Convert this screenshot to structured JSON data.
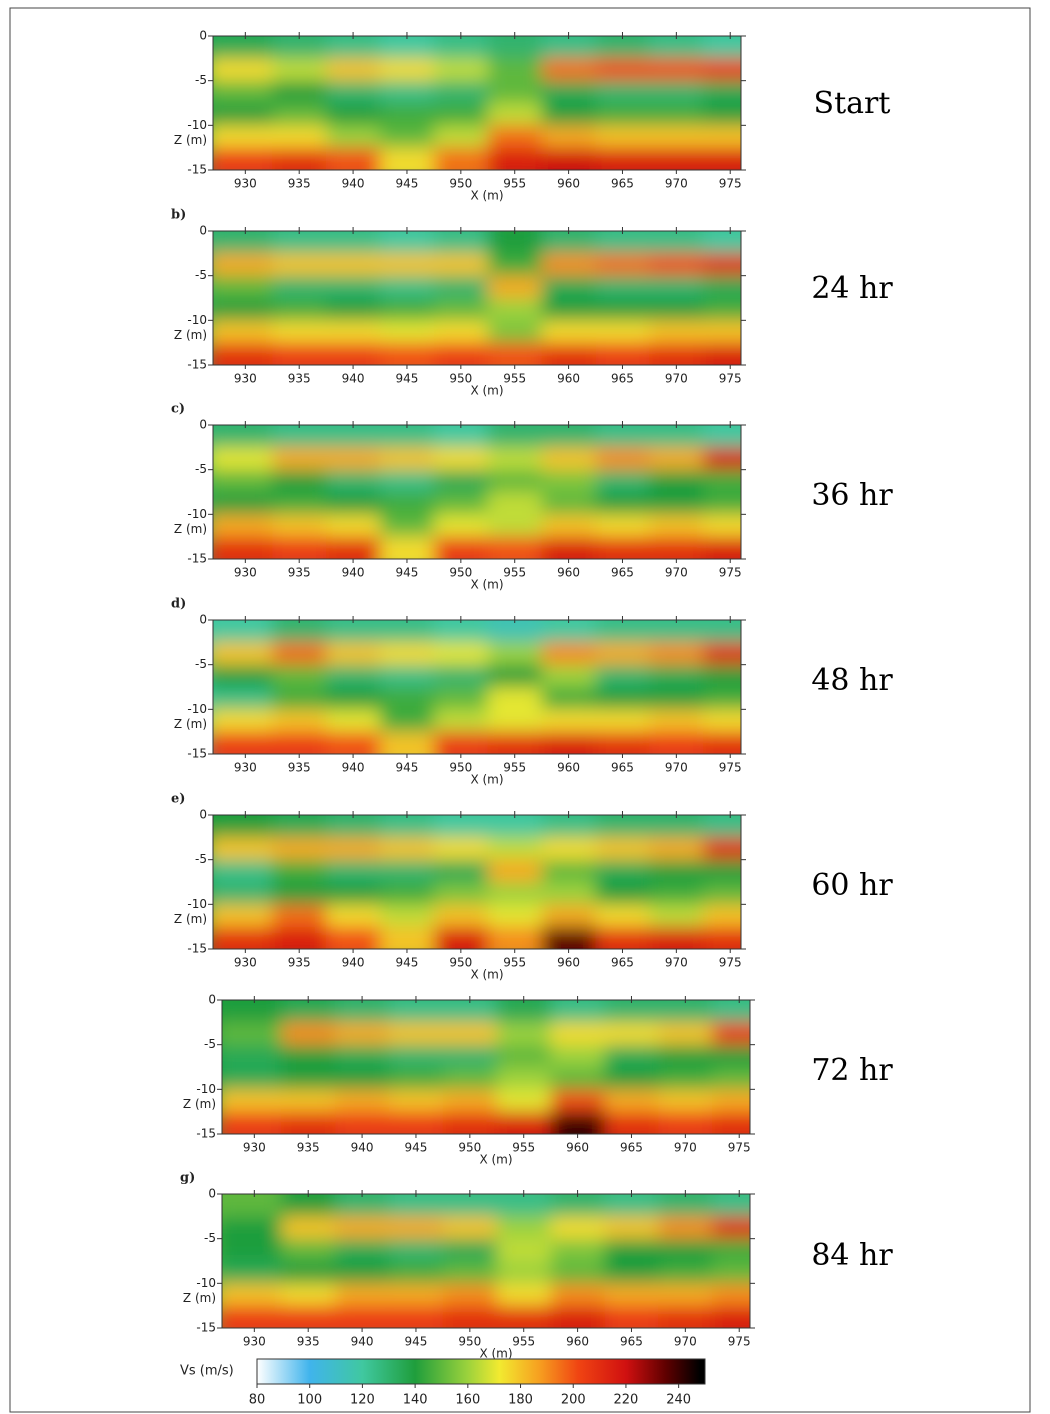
{
  "chart_data": [
    {
      "type": "heatmap",
      "annotation": "Start",
      "xlabel": "X (m)",
      "ylabel": "Z (m)",
      "x": [
        930,
        935,
        940,
        945,
        950,
        955,
        960,
        965,
        970,
        975
      ],
      "y": [
        -1.25,
        -3.75,
        -6.25,
        -8.75,
        -11.25,
        -13.75
      ],
      "xlim": [
        927,
        976
      ],
      "ylim": [
        -15,
        0
      ],
      "xticks": [
        930,
        935,
        940,
        945,
        950,
        955,
        960,
        965,
        970,
        975
      ],
      "yticks": [
        0,
        -5,
        -10,
        -15
      ],
      "values": [
        [
          135,
          130,
          125,
          120,
          125,
          130,
          125,
          130,
          125,
          120
        ],
        [
          175,
          165,
          180,
          175,
          165,
          150,
          195,
          200,
          200,
          205
        ],
        [
          150,
          140,
          130,
          125,
          130,
          150,
          135,
          130,
          130,
          135
        ],
        [
          140,
          150,
          140,
          145,
          145,
          165,
          140,
          145,
          145,
          140
        ],
        [
          175,
          175,
          160,
          150,
          165,
          195,
          185,
          180,
          180,
          180
        ],
        [
          205,
          210,
          200,
          175,
          195,
          215,
          220,
          215,
          215,
          215
        ]
      ]
    },
    {
      "type": "heatmap",
      "panel_label": "b)",
      "annotation": "24 hr",
      "xlabel": "X (m)",
      "ylabel": "Z (m)",
      "x": [
        930,
        935,
        940,
        945,
        950,
        955,
        960,
        965,
        970,
        975
      ],
      "y": [
        -1.25,
        -3.75,
        -6.25,
        -8.75,
        -11.25,
        -13.75
      ],
      "xlim": [
        927,
        976
      ],
      "ylim": [
        -15,
        0
      ],
      "xticks": [
        930,
        935,
        940,
        945,
        950,
        955,
        960,
        965,
        970,
        975
      ],
      "yticks": [
        0,
        -5,
        -10,
        -15
      ],
      "values": [
        [
          130,
          125,
          125,
          120,
          125,
          140,
          130,
          125,
          125,
          120
        ],
        [
          185,
          180,
          180,
          180,
          180,
          145,
          190,
          195,
          200,
          210
        ],
        [
          150,
          130,
          130,
          125,
          130,
          185,
          135,
          130,
          130,
          135
        ],
        [
          140,
          145,
          140,
          145,
          150,
          160,
          140,
          140,
          140,
          145
        ],
        [
          180,
          175,
          175,
          170,
          175,
          155,
          175,
          175,
          180,
          180
        ],
        [
          210,
          205,
          205,
          200,
          205,
          200,
          210,
          205,
          210,
          215
        ]
      ]
    },
    {
      "type": "heatmap",
      "panel_label": "c)",
      "annotation": "36 hr",
      "xlabel": "X (m)",
      "ylabel": "Z (m)",
      "x": [
        930,
        935,
        940,
        945,
        950,
        955,
        960,
        965,
        970,
        975
      ],
      "y": [
        -1.25,
        -3.75,
        -6.25,
        -8.75,
        -11.25,
        -13.75
      ],
      "xlim": [
        927,
        976
      ],
      "ylim": [
        -15,
        0
      ],
      "xticks": [
        930,
        935,
        940,
        945,
        950,
        955,
        960,
        965,
        970,
        975
      ],
      "yticks": [
        0,
        -5,
        -10,
        -15
      ],
      "values": [
        [
          130,
          125,
          125,
          125,
          120,
          130,
          130,
          125,
          125,
          120
        ],
        [
          170,
          185,
          185,
          180,
          175,
          165,
          180,
          190,
          185,
          215
        ],
        [
          150,
          140,
          130,
          125,
          135,
          150,
          155,
          130,
          140,
          145
        ],
        [
          140,
          145,
          140,
          145,
          150,
          165,
          150,
          140,
          140,
          145
        ],
        [
          185,
          180,
          175,
          150,
          170,
          165,
          180,
          175,
          180,
          175
        ],
        [
          210,
          205,
          210,
          175,
          205,
          200,
          215,
          210,
          210,
          215
        ]
      ]
    },
    {
      "type": "heatmap",
      "panel_label": "d)",
      "annotation": "48 hr",
      "xlabel": "X (m)",
      "ylabel": "Z (m)",
      "x": [
        930,
        935,
        940,
        945,
        950,
        955,
        960,
        965,
        970,
        975
      ],
      "y": [
        -1.25,
        -3.75,
        -6.25,
        -8.75,
        -11.25,
        -13.75
      ],
      "xlim": [
        927,
        976
      ],
      "ylim": [
        -15,
        0
      ],
      "xticks": [
        930,
        935,
        940,
        945,
        950,
        955,
        960,
        965,
        970,
        975
      ],
      "yticks": [
        0,
        -5,
        -10,
        -15
      ],
      "values": [
        [
          120,
          130,
          125,
          125,
          120,
          115,
          120,
          125,
          125,
          125
        ],
        [
          180,
          195,
          180,
          175,
          170,
          160,
          190,
          185,
          190,
          210
        ],
        [
          140,
          150,
          130,
          125,
          130,
          140,
          160,
          130,
          135,
          140
        ],
        [
          125,
          145,
          140,
          145,
          150,
          170,
          145,
          140,
          140,
          145
        ],
        [
          175,
          180,
          170,
          145,
          165,
          170,
          175,
          175,
          180,
          175
        ],
        [
          205,
          205,
          200,
          180,
          205,
          210,
          215,
          210,
          205,
          210
        ]
      ]
    },
    {
      "type": "heatmap",
      "panel_label": "e)",
      "annotation": "60 hr",
      "xlabel": "X (m)",
      "ylabel": "Z (m)",
      "x": [
        930,
        935,
        940,
        945,
        950,
        955,
        960,
        965,
        970,
        975
      ],
      "y": [
        -1.25,
        -3.75,
        -6.25,
        -8.75,
        -11.25,
        -13.75
      ],
      "xlim": [
        927,
        976
      ],
      "ylim": [
        -15,
        0
      ],
      "xticks": [
        930,
        935,
        940,
        945,
        950,
        955,
        960,
        965,
        970,
        975
      ],
      "yticks": [
        0,
        -5,
        -10,
        -15
      ],
      "values": [
        [
          140,
          135,
          130,
          125,
          120,
          120,
          125,
          130,
          130,
          125
        ],
        [
          180,
          185,
          185,
          180,
          175,
          165,
          175,
          180,
          185,
          210
        ],
        [
          125,
          145,
          130,
          130,
          135,
          185,
          150,
          135,
          140,
          140
        ],
        [
          130,
          140,
          140,
          145,
          155,
          160,
          160,
          140,
          145,
          150
        ],
        [
          180,
          195,
          175,
          165,
          180,
          170,
          185,
          175,
          165,
          180
        ],
        [
          210,
          215,
          200,
          180,
          215,
          190,
          235,
          210,
          215,
          210
        ]
      ]
    },
    {
      "type": "heatmap",
      "annotation": "72 hr",
      "xlabel": "X (m)",
      "ylabel": "Z (m)",
      "x": [
        930,
        935,
        940,
        945,
        950,
        955,
        960,
        965,
        970,
        975
      ],
      "y": [
        -1.25,
        -3.75,
        -6.25,
        -8.75,
        -11.25,
        -13.75
      ],
      "xlim": [
        927,
        976
      ],
      "ylim": [
        -15,
        0
      ],
      "xticks": [
        930,
        935,
        940,
        945,
        950,
        955,
        960,
        965,
        970,
        975
      ],
      "yticks": [
        0,
        -5,
        -10,
        -15
      ],
      "values": [
        [
          140,
          135,
          130,
          125,
          125,
          135,
          125,
          130,
          130,
          125
        ],
        [
          150,
          190,
          185,
          180,
          180,
          160,
          175,
          175,
          180,
          205
        ],
        [
          135,
          140,
          135,
          130,
          130,
          150,
          160,
          135,
          140,
          140
        ],
        [
          135,
          140,
          140,
          145,
          150,
          160,
          150,
          140,
          145,
          150
        ],
        [
          180,
          180,
          185,
          180,
          185,
          170,
          200,
          185,
          180,
          185
        ],
        [
          205,
          210,
          205,
          205,
          210,
          215,
          240,
          210,
          205,
          210
        ]
      ]
    },
    {
      "type": "heatmap",
      "panel_label": "g)",
      "annotation": "84 hr",
      "xlabel": "X (m)",
      "ylabel": "Z (m)",
      "x": [
        930,
        935,
        940,
        945,
        950,
        955,
        960,
        965,
        970,
        975
      ],
      "y": [
        -1.25,
        -3.75,
        -6.25,
        -8.75,
        -11.25,
        -13.75
      ],
      "xlim": [
        927,
        976
      ],
      "ylim": [
        -15,
        0
      ],
      "xticks": [
        930,
        935,
        940,
        945,
        950,
        955,
        960,
        965,
        970,
        975
      ],
      "yticks": [
        0,
        -5,
        -10,
        -15
      ],
      "values": [
        [
          150,
          140,
          130,
          125,
          125,
          125,
          130,
          125,
          130,
          125
        ],
        [
          140,
          180,
          185,
          185,
          180,
          160,
          175,
          180,
          190,
          210
        ],
        [
          140,
          150,
          135,
          130,
          135,
          165,
          155,
          140,
          140,
          145
        ],
        [
          135,
          140,
          140,
          145,
          150,
          160,
          150,
          140,
          145,
          150
        ],
        [
          180,
          175,
          185,
          185,
          190,
          175,
          190,
          185,
          185,
          190
        ],
        [
          205,
          205,
          205,
          205,
          210,
          210,
          215,
          205,
          210,
          215
        ]
      ]
    },
    {
      "type": "colorbar",
      "label": "Vs (m/s)",
      "xlim": [
        80,
        250
      ],
      "xticks": [
        80,
        100,
        120,
        140,
        160,
        180,
        200,
        220,
        240
      ],
      "stops": [
        {
          "value": 80,
          "color": "#ffffff"
        },
        {
          "value": 100,
          "color": "#40b4ec"
        },
        {
          "value": 120,
          "color": "#40c8a0"
        },
        {
          "value": 140,
          "color": "#1f9e3c"
        },
        {
          "value": 160,
          "color": "#9cd23c"
        },
        {
          "value": 172,
          "color": "#f2ea30"
        },
        {
          "value": 187,
          "color": "#f6a020"
        },
        {
          "value": 202,
          "color": "#f04412"
        },
        {
          "value": 220,
          "color": "#d01010"
        },
        {
          "value": 235,
          "color": "#600000"
        },
        {
          "value": 248,
          "color": "#000000"
        }
      ]
    }
  ]
}
